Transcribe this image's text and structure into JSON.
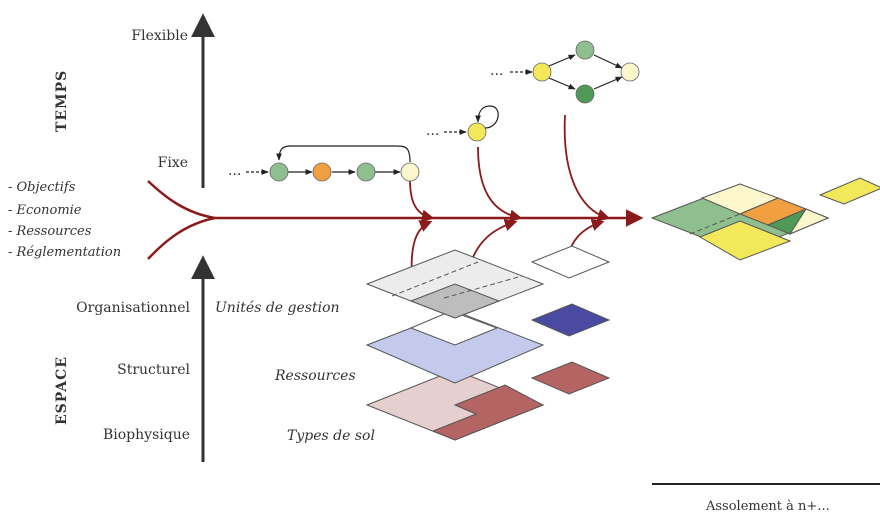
{
  "time_axis": {
    "title": "TEMPS",
    "levels": [
      "Flexible",
      "Fixe"
    ]
  },
  "space_axis": {
    "title": "ESPACE",
    "levels": [
      "Organisationnel",
      "Structurel",
      "Biophysique"
    ]
  },
  "drivers": [
    "- Objectifs",
    "- Economie",
    "- Ressources",
    "- Réglementation"
  ],
  "layers": [
    "Unités de gestion",
    "Ressources",
    "Types de sol"
  ],
  "sequence_dots": "...",
  "footer": "Assolement à n+...",
  "colors": {
    "arrow": "#8b1a1a",
    "axis": "#333333",
    "node_green": "#8fbf8f",
    "node_dark_green": "#4f9a57",
    "node_orange": "#f0a040",
    "node_yellow": "#f2e85a",
    "node_cream": "#fbf6cc",
    "layer_grey": "#d9d9d9",
    "layer_blue": "#c5c9ec",
    "layer_dark_blue": "#4a4aa3",
    "layer_pink": "#e6cfcf",
    "layer_red": "#b56464"
  }
}
